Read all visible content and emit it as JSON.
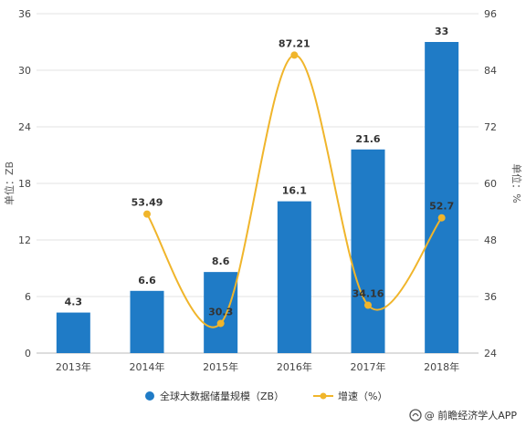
{
  "colors": {
    "bar": "#1f7bc6",
    "line": "#f0b52b",
    "grid": "#e3e3e3",
    "text": "#444444"
  },
  "chart_data": {
    "type": "bar",
    "categories": [
      "2013年",
      "2014年",
      "2015年",
      "2016年",
      "2017年",
      "2018年"
    ],
    "series": [
      {
        "name": "全球大数据储量规模（ZB）",
        "type": "bar",
        "axis": "left",
        "values": [
          4.3,
          6.6,
          8.6,
          16.1,
          21.6,
          33
        ],
        "labels": [
          "4.3",
          "6.6",
          "8.6",
          "16.1",
          "21.6",
          "33"
        ]
      },
      {
        "name": "增速（%）",
        "type": "line",
        "axis": "right",
        "values": [
          null,
          53.49,
          30.3,
          87.21,
          34.16,
          52.7
        ],
        "labels": [
          "",
          "53.49",
          "30.3",
          "87.21",
          "34.16",
          "52.7"
        ]
      }
    ],
    "ylabel_left": "单位：ZB",
    "ylabel_right": "单位：%",
    "ylim_left": [
      0,
      36
    ],
    "yticks_left": [
      "0",
      "6",
      "12",
      "18",
      "24",
      "30",
      "36"
    ],
    "ylim_right": [
      24,
      96
    ],
    "yticks_right": [
      "24",
      "36",
      "48",
      "60",
      "72",
      "84",
      "96"
    ],
    "grid": true,
    "legend": "bottom"
  },
  "legend_items": [
    {
      "label": "全球大数据储量规模（ZB）",
      "icon": "blue-dot-icon"
    },
    {
      "label": "增速（%）",
      "icon": "line-marker-icon"
    }
  ],
  "footer": {
    "icon": "brand-logo-icon",
    "text": "@ 前瞻经济学人APP"
  }
}
